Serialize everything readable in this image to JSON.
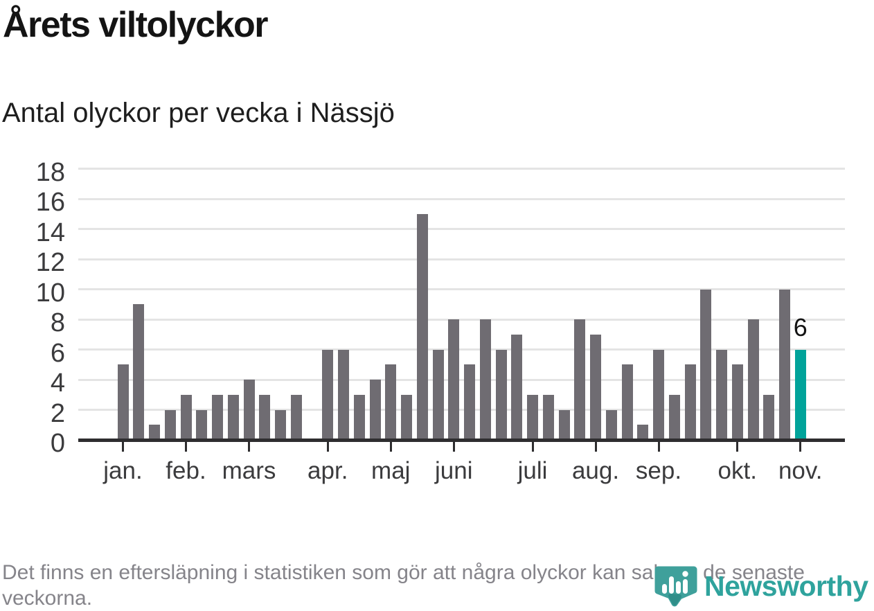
{
  "title": "Årets viltolyckor",
  "subtitle": "Antal olyckor per vecka i Nässjö",
  "footer": "Det finns en eftersläpning i statistiken som gör att några olyckor kan saknas de senaste veckorna.",
  "logo": {
    "brand": "Newsworthy"
  },
  "colors": {
    "bar": "#6f6c72",
    "highlight": "#00a39a",
    "grid": "#e4e4e4",
    "axis": "#2e2d2f",
    "label_text": "#3b3b3d",
    "footer_text": "#85848a",
    "logo_teal": "#3fa09b",
    "wordmark_teal": "#2fa39d"
  },
  "chart_data": {
    "type": "bar",
    "title": "Årets viltolyckor",
    "subtitle": "Antal olyckor per vecka i Nässjö",
    "x_unit": "week",
    "values": [
      5,
      9,
      1,
      2,
      3,
      2,
      3,
      3,
      4,
      3,
      2,
      3,
      null,
      6,
      6,
      3,
      4,
      5,
      3,
      15,
      6,
      8,
      5,
      8,
      6,
      7,
      3,
      3,
      2,
      8,
      7,
      2,
      5,
      1,
      6,
      3,
      5,
      10,
      6,
      5,
      8,
      3,
      10,
      6
    ],
    "month_ticks": [
      {
        "label": "jan.",
        "slot": 0
      },
      {
        "label": "feb.",
        "slot": 4
      },
      {
        "label": "mars",
        "slot": 8
      },
      {
        "label": "apr.",
        "slot": 13
      },
      {
        "label": "maj",
        "slot": 17
      },
      {
        "label": "juni",
        "slot": 21
      },
      {
        "label": "juli",
        "slot": 26
      },
      {
        "label": "aug.",
        "slot": 30
      },
      {
        "label": "sep.",
        "slot": 34
      },
      {
        "label": "okt.",
        "slot": 39
      },
      {
        "label": "nov.",
        "slot": 43
      }
    ],
    "yticks": [
      0,
      2,
      4,
      6,
      8,
      10,
      12,
      14,
      16,
      18
    ],
    "ylim": [
      0,
      18
    ],
    "grid": true,
    "legend": "none",
    "highlight_last_bar": true,
    "highlight_value_label": "6"
  }
}
